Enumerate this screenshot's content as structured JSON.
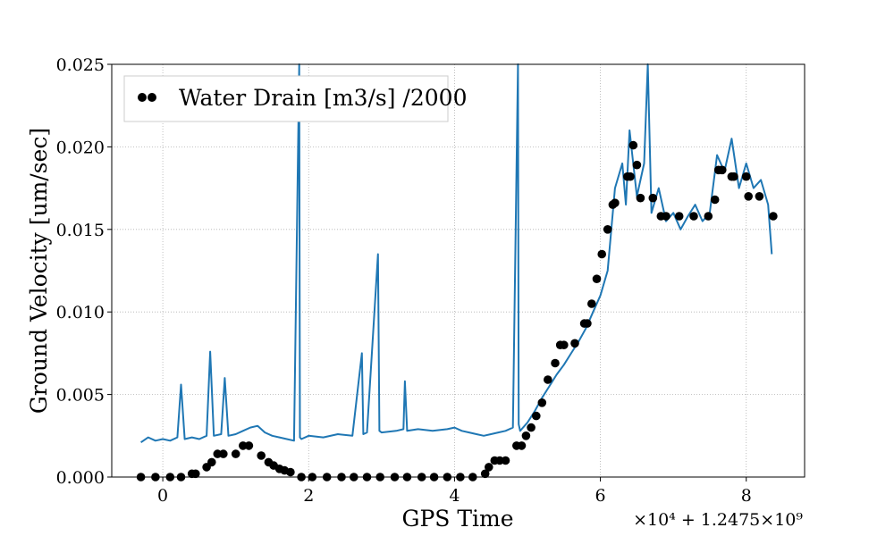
{
  "chart_data": {
    "type": "scatter",
    "xlabel": "GPS Time",
    "ylabel": "Ground Velocity [um/sec]",
    "x_offset_label": "×10⁴ + 1.2475×10⁹",
    "xlim": [
      -0.7,
      8.8
    ],
    "ylim": [
      0,
      0.025
    ],
    "xticks": [
      0,
      2,
      4,
      6,
      8
    ],
    "xtick_labels": [
      "0",
      "2",
      "4",
      "6",
      "8"
    ],
    "yticks": [
      0.0,
      0.005,
      0.01,
      0.015,
      0.02,
      0.025
    ],
    "ytick_labels": [
      "0.000",
      "0.005",
      "0.010",
      "0.015",
      "0.020",
      "0.025"
    ],
    "grid": true,
    "legend_position": "top-left",
    "colors": {
      "line": "#1f77b4",
      "points": "#000000",
      "grid": "#b0b0b0"
    },
    "series": [
      {
        "name": "",
        "kind": "line",
        "color": "#1f77b4",
        "x": [
          -0.3,
          -0.2,
          -0.1,
          0.0,
          0.1,
          0.2,
          0.25,
          0.3,
          0.4,
          0.5,
          0.6,
          0.65,
          0.7,
          0.8,
          0.85,
          0.9,
          1.0,
          1.1,
          1.2,
          1.3,
          1.4,
          1.5,
          1.6,
          1.7,
          1.8,
          1.87,
          1.88,
          1.9,
          2.0,
          2.2,
          2.4,
          2.6,
          2.73,
          2.75,
          2.8,
          2.95,
          2.97,
          3.0,
          3.2,
          3.3,
          3.32,
          3.35,
          3.5,
          3.7,
          3.9,
          4.0,
          4.1,
          4.2,
          4.3,
          4.4,
          4.5,
          4.6,
          4.7,
          4.8,
          4.87,
          4.88,
          4.9,
          5.0,
          5.1,
          5.2,
          5.3,
          5.4,
          5.5,
          5.6,
          5.7,
          5.8,
          5.9,
          6.0,
          6.1,
          6.15,
          6.2,
          6.3,
          6.35,
          6.4,
          6.5,
          6.6,
          6.65,
          6.7,
          6.8,
          6.9,
          7.0,
          7.1,
          7.2,
          7.3,
          7.4,
          7.5,
          7.6,
          7.7,
          7.8,
          7.9,
          8.0,
          8.1,
          8.2,
          8.3,
          8.35
        ],
        "y": [
          0.0021,
          0.0024,
          0.0022,
          0.0023,
          0.0022,
          0.0024,
          0.0056,
          0.0023,
          0.0024,
          0.0023,
          0.0025,
          0.0076,
          0.0025,
          0.0026,
          0.006,
          0.0025,
          0.0026,
          0.0028,
          0.003,
          0.0031,
          0.0027,
          0.0025,
          0.0024,
          0.0023,
          0.0022,
          0.025,
          0.0024,
          0.0023,
          0.0025,
          0.0024,
          0.0026,
          0.0025,
          0.0075,
          0.0026,
          0.0027,
          0.0135,
          0.0028,
          0.0027,
          0.0028,
          0.0029,
          0.0058,
          0.0028,
          0.0029,
          0.0028,
          0.0029,
          0.003,
          0.0028,
          0.0027,
          0.0026,
          0.0025,
          0.0026,
          0.0027,
          0.0028,
          0.003,
          0.025,
          0.0032,
          0.0028,
          0.0033,
          0.004,
          0.0048,
          0.0055,
          0.0062,
          0.0068,
          0.0075,
          0.0082,
          0.009,
          0.01,
          0.011,
          0.0125,
          0.015,
          0.0175,
          0.019,
          0.0165,
          0.021,
          0.017,
          0.019,
          0.025,
          0.016,
          0.0175,
          0.0155,
          0.016,
          0.015,
          0.0158,
          0.0165,
          0.0155,
          0.016,
          0.0195,
          0.0185,
          0.0205,
          0.0175,
          0.019,
          0.0175,
          0.018,
          0.0165,
          0.0135
        ]
      },
      {
        "name": "Water Drain [m3/s] /2000",
        "kind": "points",
        "color": "#000000",
        "x": [
          -0.3,
          -0.1,
          0.1,
          0.25,
          0.4,
          0.45,
          0.6,
          0.67,
          0.75,
          0.83,
          1.0,
          1.1,
          1.18,
          1.35,
          1.45,
          1.52,
          1.6,
          1.67,
          1.75,
          1.9,
          2.05,
          2.25,
          2.45,
          2.62,
          2.8,
          2.98,
          3.18,
          3.35,
          3.55,
          3.72,
          3.9,
          4.08,
          4.25,
          4.42,
          4.47,
          4.55,
          4.62,
          4.7,
          4.85,
          4.92,
          4.98,
          5.05,
          5.12,
          5.2,
          5.28,
          5.38,
          5.45,
          5.5,
          5.65,
          5.78,
          5.82,
          5.88,
          5.95,
          6.02,
          6.1,
          6.17,
          6.2,
          6.37,
          6.41,
          6.45,
          6.5,
          6.55,
          6.72,
          6.83,
          6.9,
          7.08,
          7.28,
          7.48,
          7.57,
          7.62,
          7.67,
          7.8,
          7.83,
          8.0,
          8.03,
          8.18,
          8.37
        ],
        "y": [
          0.0,
          0.0,
          0.0,
          0.0,
          0.0002,
          0.0002,
          0.0006,
          0.0009,
          0.0014,
          0.0014,
          0.0014,
          0.0019,
          0.0019,
          0.0013,
          0.0009,
          0.0007,
          0.0005,
          0.0004,
          0.0003,
          0.0,
          0.0,
          0.0,
          0.0,
          0.0,
          0.0,
          0.0,
          0.0,
          0.0,
          0.0,
          0.0,
          0.0,
          0.0,
          0.0,
          0.0002,
          0.0006,
          0.001,
          0.001,
          0.001,
          0.0019,
          0.0019,
          0.0025,
          0.003,
          0.0037,
          0.0045,
          0.0059,
          0.0069,
          0.008,
          0.008,
          0.0081,
          0.0093,
          0.0093,
          0.0105,
          0.012,
          0.0135,
          0.015,
          0.0165,
          0.0166,
          0.0182,
          0.0182,
          0.0201,
          0.0189,
          0.0169,
          0.0169,
          0.0158,
          0.0158,
          0.0158,
          0.0158,
          0.0158,
          0.0168,
          0.0186,
          0.0186,
          0.0182,
          0.0182,
          0.0182,
          0.017,
          0.017,
          0.0158
        ]
      }
    ]
  }
}
